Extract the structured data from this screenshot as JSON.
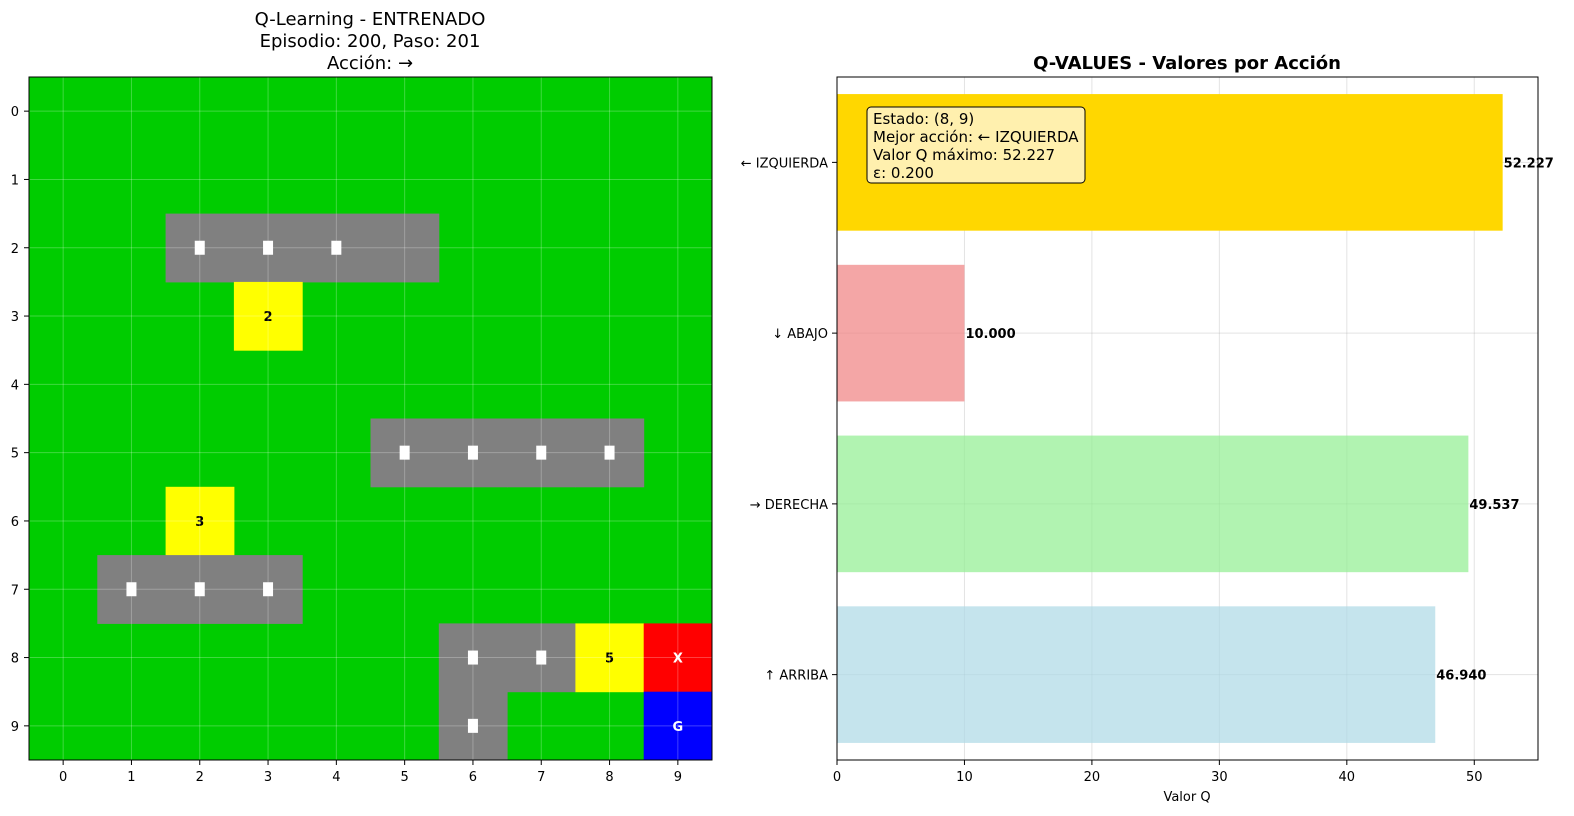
{
  "grid_panel": {
    "title_lines": [
      "Q-Learning - ENTRENADO",
      "Episodio: 200, Paso: 201",
      "Acción: →"
    ],
    "x_ticks": [
      "0",
      "1",
      "2",
      "3",
      "4",
      "5",
      "6",
      "7",
      "8",
      "9"
    ],
    "y_ticks": [
      "0",
      "1",
      "2",
      "3",
      "4",
      "5",
      "6",
      "7",
      "8",
      "9"
    ],
    "colors": {
      "grass": "#00cc00",
      "road": "#808080",
      "marker": "#ffffff",
      "reward": "#ffff00",
      "agent": "#ff0000",
      "goal": "#0000ff"
    }
  },
  "chart_data": [
    {
      "type": "heatmap",
      "rows": 10,
      "cols": 10,
      "cells": [
        {
          "row": 2,
          "col": 2,
          "kind": "road"
        },
        {
          "row": 2,
          "col": 3,
          "kind": "road"
        },
        {
          "row": 2,
          "col": 4,
          "kind": "road"
        },
        {
          "row": 2,
          "col": 5,
          "kind": "road",
          "marker": false
        },
        {
          "row": 3,
          "col": 3,
          "kind": "reward",
          "label": "2"
        },
        {
          "row": 5,
          "col": 5,
          "kind": "road"
        },
        {
          "row": 5,
          "col": 6,
          "kind": "road"
        },
        {
          "row": 5,
          "col": 7,
          "kind": "road"
        },
        {
          "row": 5,
          "col": 8,
          "kind": "road"
        },
        {
          "row": 6,
          "col": 2,
          "kind": "reward",
          "label": "3"
        },
        {
          "row": 7,
          "col": 1,
          "kind": "road"
        },
        {
          "row": 7,
          "col": 2,
          "kind": "road"
        },
        {
          "row": 7,
          "col": 3,
          "kind": "road"
        },
        {
          "row": 8,
          "col": 6,
          "kind": "road"
        },
        {
          "row": 8,
          "col": 7,
          "kind": "road"
        },
        {
          "row": 8,
          "col": 8,
          "kind": "reward",
          "label": "5"
        },
        {
          "row": 8,
          "col": 9,
          "kind": "agent",
          "label": "X"
        },
        {
          "row": 9,
          "col": 6,
          "kind": "road"
        },
        {
          "row": 9,
          "col": 9,
          "kind": "goal",
          "label": "G"
        }
      ]
    },
    {
      "type": "bar",
      "orientation": "horizontal",
      "title": "Q-VALUES - Valores por Acción",
      "xlabel": "Valor Q",
      "xlim": [
        0,
        55
      ],
      "x_ticks": [
        0,
        10,
        20,
        30,
        40,
        50
      ],
      "categories": [
        "↑ ARRIBA",
        "→ DERECHA",
        "↓ ABAJO",
        "← IZQUIERDA"
      ],
      "values": [
        46.94,
        49.537,
        10.0,
        52.227
      ],
      "value_labels": [
        "46.940",
        "49.537",
        "10.000",
        "52.227"
      ],
      "colors": [
        "#add8e6",
        "#90ee90",
        "#f08080",
        "#ffd700"
      ],
      "grid": true,
      "info_box": {
        "lines": [
          "Estado: (8, 9)",
          "Mejor acción: ← IZQUIERDA",
          "Valor Q máximo: 52.227",
          "ε: 0.200"
        ],
        "background": "#fff5cc"
      }
    }
  ]
}
